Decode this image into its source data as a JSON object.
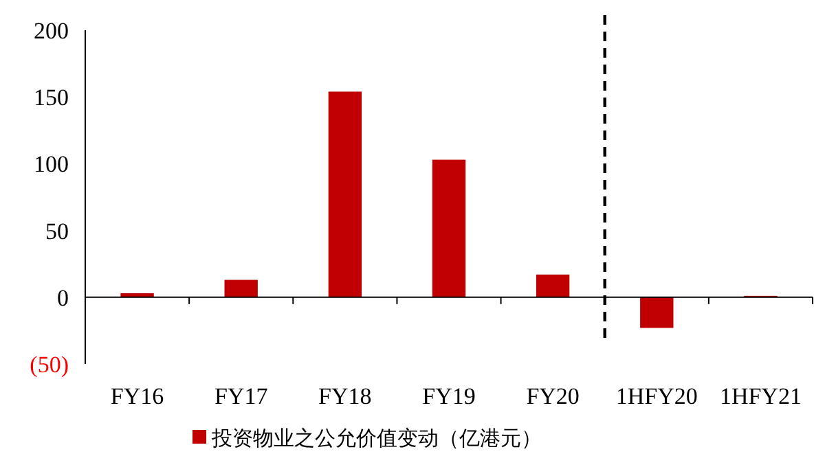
{
  "chart_data": {
    "type": "bar",
    "categories": [
      "FY16",
      "FY17",
      "FY18",
      "FY19",
      "FY20",
      "1HFY20",
      "1HFY21"
    ],
    "series": [
      {
        "name": "投资物业之公允价值变动（亿港元）",
        "color": "#c00000",
        "values": [
          3,
          13,
          154,
          103,
          17,
          -23,
          1
        ]
      }
    ],
    "ylim": [
      -50,
      200
    ],
    "yticks": [
      {
        "value": -50,
        "label": "(50)"
      },
      0,
      50,
      100,
      150,
      200
    ],
    "legend": "bottom"
  }
}
